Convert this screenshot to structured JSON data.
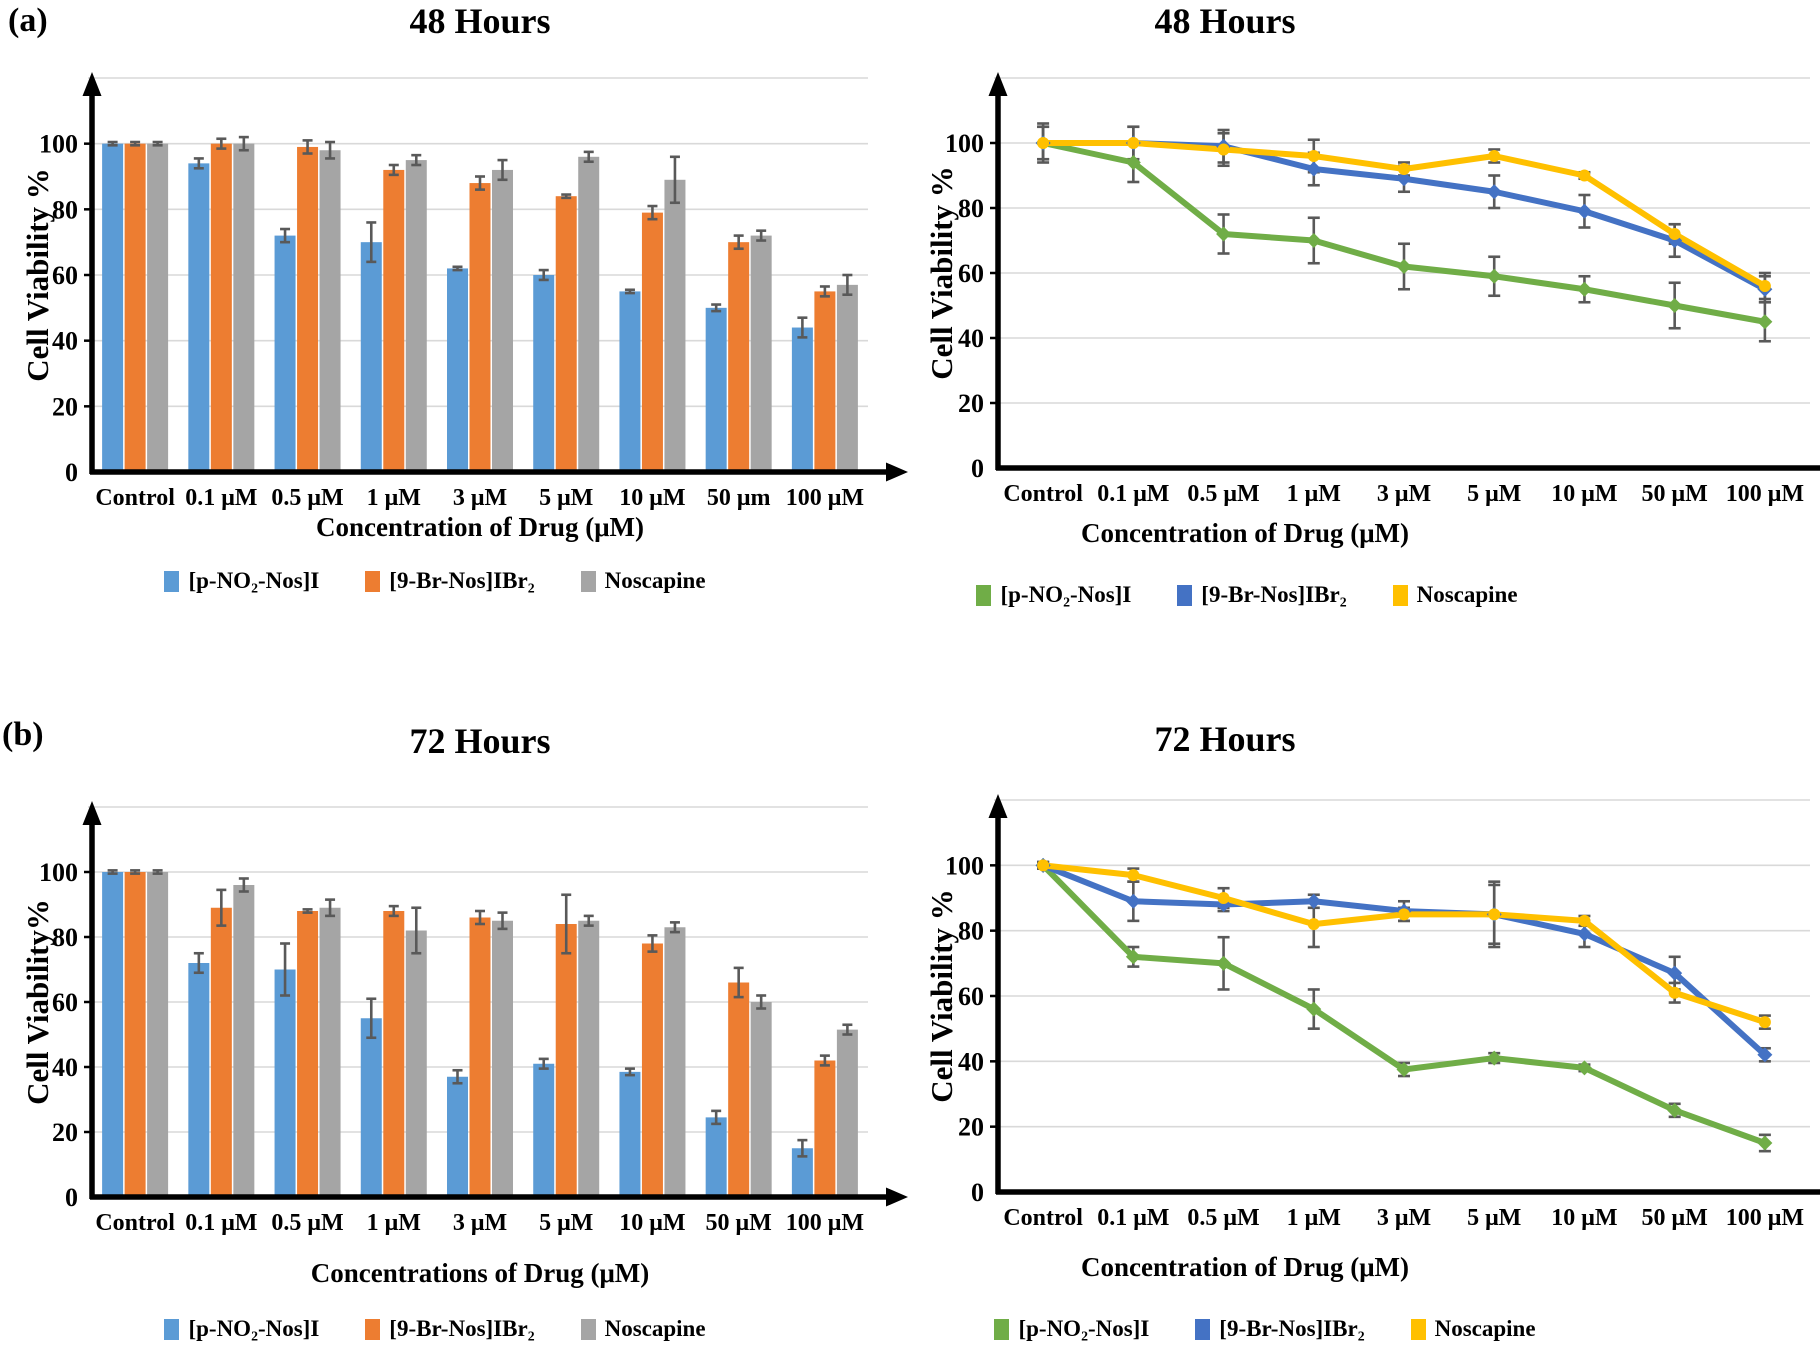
{
  "panels": {
    "a": "(a)",
    "b": "(b)"
  },
  "style": {
    "background": "#FFFFFF",
    "grid_color": "#D9D9D9",
    "error_bar_color": "#595959",
    "axis_color": "#000000"
  },
  "chart_data": [
    {
      "id": "bar-48h",
      "type": "bar",
      "title": "48 Hours",
      "xlabel": "Concentration of Drug (μM)",
      "ylabel": "Cell Viability %",
      "categories": [
        "Control",
        "0.1 μM",
        "0.5 μM",
        "1 μM",
        "3 μM",
        "5 μM",
        "10 μM",
        "50 μm",
        "100 μM"
      ],
      "ylim": [
        0,
        120
      ],
      "yticks": [
        0,
        20,
        40,
        60,
        80,
        100
      ],
      "grid": true,
      "legend_position": "bottom",
      "series": [
        {
          "name": "[p-NO₂-Nos]I",
          "color": "#5B9BD5",
          "values": [
            100,
            94,
            72,
            70,
            62,
            60,
            55,
            50,
            44
          ],
          "errors": [
            0.5,
            1.5,
            2,
            6,
            0.5,
            1.5,
            0.5,
            1,
            3
          ]
        },
        {
          "name": "[9-Br-Nos]IBr₂",
          "color": "#ED7D31",
          "values": [
            100,
            100,
            99,
            92,
            88,
            84,
            79,
            70,
            55
          ],
          "errors": [
            0.5,
            1.5,
            2,
            1.5,
            2,
            0.5,
            2,
            2,
            1.5
          ]
        },
        {
          "name": "Noscapine",
          "color": "#A5A5A5",
          "values": [
            100,
            100,
            98,
            95,
            92,
            96,
            89,
            72,
            57
          ],
          "errors": [
            0.5,
            2,
            2.5,
            1.5,
            3,
            1.5,
            7,
            1.5,
            3
          ]
        }
      ]
    },
    {
      "id": "line-48h",
      "type": "line",
      "title": "48 Hours",
      "xlabel": "Concentration of Drug (μM)",
      "ylabel": "Cell Viability %",
      "categories": [
        "Control",
        "0.1 μM",
        "0.5 μM",
        "1 μM",
        "3 μM",
        "5 μM",
        "10 μM",
        "50 μM",
        "100 μM"
      ],
      "ylim": [
        0,
        120
      ],
      "yticks": [
        0,
        20,
        40,
        60,
        80,
        100
      ],
      "grid": true,
      "legend_position": "bottom",
      "series": [
        {
          "name": "[p-NO₂-Nos]I",
          "color": "#70AD47",
          "marker": "diamond",
          "values": [
            100,
            94,
            72,
            70,
            62,
            59,
            55,
            50,
            45
          ],
          "errors": [
            6,
            6,
            6,
            7,
            7,
            6,
            4,
            7,
            6
          ]
        },
        {
          "name": "[9-Br-Nos]IBr₂",
          "color": "#4472C4",
          "marker": "diamond",
          "values": [
            100,
            100,
            99,
            92,
            89,
            85,
            79,
            70,
            55
          ],
          "errors": [
            5,
            5,
            5,
            5,
            4,
            5,
            5,
            5,
            4
          ]
        },
        {
          "name": "Noscapine",
          "color": "#FFC000",
          "marker": "circle",
          "values": [
            100,
            100,
            98,
            96,
            92,
            96,
            90,
            72,
            56
          ],
          "errors": [
            5,
            5,
            5,
            5,
            2,
            2,
            1,
            3,
            4
          ]
        }
      ]
    },
    {
      "id": "bar-72h",
      "type": "bar",
      "title": "72 Hours",
      "xlabel": "Concentrations of Drug (μM)",
      "ylabel": "Cell Viability%",
      "categories": [
        "Control",
        "0.1 μM",
        "0.5 μM",
        "1 μM",
        "3 μM",
        "5 μM",
        "10 μM",
        "50 μM",
        "100 μM"
      ],
      "ylim": [
        0,
        120
      ],
      "yticks": [
        0,
        20,
        40,
        60,
        80,
        100
      ],
      "grid": true,
      "legend_position": "bottom",
      "series": [
        {
          "name": "[p-NO₂-Nos]I",
          "color": "#5B9BD5",
          "values": [
            100,
            72,
            70,
            55,
            37,
            41,
            38.5,
            24.5,
            15
          ],
          "errors": [
            0.5,
            3,
            8,
            6,
            2,
            1.5,
            1,
            2,
            2.5
          ]
        },
        {
          "name": "[9-Br-Nos]IBr₂",
          "color": "#ED7D31",
          "values": [
            100,
            89,
            88,
            88,
            86,
            84,
            78,
            66,
            42
          ],
          "errors": [
            0.5,
            5.5,
            0.5,
            1.5,
            2,
            9,
            2.5,
            4.5,
            1.5
          ]
        },
        {
          "name": "Noscapine",
          "color": "#A5A5A5",
          "values": [
            100,
            96,
            89,
            82,
            85,
            85,
            83,
            60,
            51.5
          ],
          "errors": [
            0.5,
            2,
            2.5,
            7,
            2.5,
            1.5,
            1.5,
            2,
            1.5
          ]
        }
      ]
    },
    {
      "id": "line-72h",
      "type": "line",
      "title": "72 Hours",
      "xlabel": "Concentration of Drug (μM)",
      "ylabel": "Cell Viability %",
      "categories": [
        "Control",
        "0.1 μM",
        "0.5 μM",
        "1 μM",
        "3 μM",
        "5 μM",
        "10 μM",
        "50 μM",
        "100 μM"
      ],
      "ylim": [
        0,
        120
      ],
      "yticks": [
        0,
        20,
        40,
        60,
        80,
        100
      ],
      "grid": true,
      "legend_position": "bottom",
      "series": [
        {
          "name": "[p-NO₂-Nos]I",
          "color": "#70AD47",
          "marker": "diamond",
          "values": [
            100,
            72,
            70,
            56,
            37.5,
            41,
            38,
            25,
            15
          ],
          "errors": [
            1,
            3,
            8,
            6,
            2,
            1.5,
            1,
            2,
            2.5
          ]
        },
        {
          "name": "[9-Br-Nos]IBr₂",
          "color": "#4472C4",
          "marker": "diamond",
          "values": [
            100,
            89,
            88,
            89,
            86,
            85,
            79,
            67,
            42
          ],
          "errors": [
            1,
            6,
            2,
            2,
            3,
            10,
            4,
            5,
            2
          ]
        },
        {
          "name": "Noscapine",
          "color": "#FFC000",
          "marker": "circle",
          "values": [
            100,
            97,
            90,
            82,
            85,
            85,
            83,
            61,
            52
          ],
          "errors": [
            1,
            2,
            3,
            7,
            2,
            9,
            1.5,
            3,
            2
          ]
        }
      ]
    }
  ]
}
